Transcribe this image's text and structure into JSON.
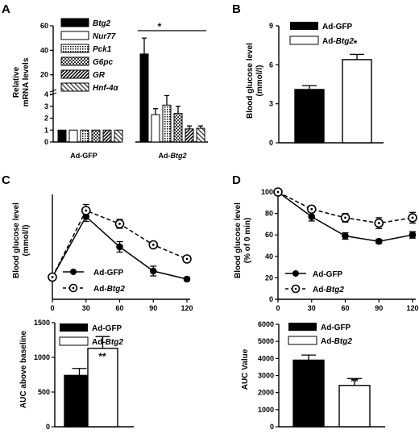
{
  "panels": {
    "A": "A",
    "B": "B",
    "C": "C",
    "D": "D"
  },
  "colors": {
    "black": "#000000",
    "white": "#ffffff"
  },
  "chart_data": [
    {
      "id": "A",
      "type": "bar",
      "ylabel_line1": "Relative",
      "ylabel_line2": "mRNA levels",
      "y_ticks": [
        "0",
        "1",
        "2",
        "3",
        "4",
        "20",
        "40",
        "60"
      ],
      "y_axis": "broken: 0–4 linear, 4–60 compressed",
      "groups": [
        "Ad-GFP",
        "Ad-Btg2"
      ],
      "group_label_gfp": "Ad-GFP",
      "group_label_btg2_prefix": "Ad-",
      "group_label_btg2_italic": "Btg2",
      "series": [
        {
          "name": "Btg2",
          "pattern": "solid-black",
          "values": [
            1,
            37
          ],
          "errors": [
            0,
            13
          ]
        },
        {
          "name": "Nur77",
          "pattern": "white",
          "values": [
            1,
            2.3
          ],
          "errors": [
            0,
            0.5
          ]
        },
        {
          "name": "Pck1",
          "pattern": "dots",
          "values": [
            1,
            3.1
          ],
          "errors": [
            0,
            0.8
          ]
        },
        {
          "name": "G6pc",
          "pattern": "checker",
          "values": [
            1,
            2.4
          ],
          "errors": [
            0,
            0.6
          ]
        },
        {
          "name": "GR",
          "pattern": "diag-dark",
          "values": [
            1,
            1.1
          ],
          "errors": [
            0,
            0.25
          ]
        },
        {
          "name": "Hnf-4α",
          "pattern": "diag-light",
          "values": [
            1,
            1.15
          ],
          "errors": [
            0,
            0.2
          ]
        }
      ],
      "significance": "*"
    },
    {
      "id": "B",
      "type": "bar",
      "ylabel_line1": "Blood glucose level",
      "ylabel_line2": "(mmol/l)",
      "ylim": [
        0,
        9
      ],
      "y_ticks": [
        "0",
        "3",
        "6",
        "9"
      ],
      "legend_gfp": "Ad-GFP",
      "legend_btg2_prefix": "Ad-",
      "legend_btg2_italic": "Btg2",
      "values": [
        4.1,
        6.4
      ],
      "errors": [
        0.3,
        0.4
      ],
      "significance": "*"
    },
    {
      "id": "C-top",
      "type": "line",
      "ylabel_line1": "Blood glucose level",
      "ylabel_line2": "(mmol/l)",
      "x": [
        0,
        30,
        60,
        90,
        120
      ],
      "x_ticks": [
        "0",
        "30",
        "60",
        "90",
        "120"
      ],
      "ylim": [
        0,
        26
      ],
      "legend_gfp": "Ad-GFP",
      "legend_btg2_prefix": "Ad-",
      "legend_btg2_italic": "Btg2",
      "series": [
        {
          "name": "Ad-GFP",
          "values": [
            5.5,
            20.5,
            13,
            7,
            5
          ],
          "errors": [
            0,
            1.2,
            1.3,
            1.2,
            0.4
          ]
        },
        {
          "name": "Ad-Btg2",
          "values": [
            5.5,
            22,
            18.7,
            13.5,
            10
          ],
          "errors": [
            0,
            1.5,
            1.1,
            0.7,
            0.6
          ]
        }
      ]
    },
    {
      "id": "C-bottom",
      "type": "bar",
      "ylabel": "AUC above baseline",
      "ylim": [
        0,
        1500
      ],
      "y_ticks": [
        "0",
        "500",
        "1000",
        "1500"
      ],
      "legend_gfp": "Ad-GFP",
      "legend_btg2_prefix": "Ad-",
      "legend_btg2_italic": "Btg2",
      "values": [
        740,
        1130
      ],
      "errors": [
        100,
        170
      ],
      "significance": "**"
    },
    {
      "id": "D-top",
      "type": "line",
      "ylabel_line1": "Blood glucose level",
      "ylabel_line2": "(% of 0 min)",
      "x": [
        0,
        30,
        60,
        90,
        120
      ],
      "x_ticks": [
        "0",
        "30",
        "60",
        "90",
        "120"
      ],
      "ylim": [
        0,
        100
      ],
      "y_ticks": [
        "0",
        "20",
        "40",
        "60",
        "80",
        "100"
      ],
      "legend_gfp": "Ad-GFP",
      "legend_btg2_prefix": "Ad-",
      "legend_btg2_italic": "Btg2",
      "series": [
        {
          "name": "Ad-GFP",
          "values": [
            100,
            77,
            59,
            54,
            60
          ],
          "errors": [
            0,
            4,
            3,
            2,
            3
          ]
        },
        {
          "name": "Ad-Btg2",
          "values": [
            100,
            84,
            76,
            71,
            76
          ],
          "errors": [
            0,
            3,
            4,
            5,
            5
          ]
        }
      ]
    },
    {
      "id": "D-bottom",
      "type": "bar",
      "ylabel": "AUC Value",
      "ylim": [
        0,
        6000
      ],
      "y_ticks": [
        "0",
        "1000",
        "2000",
        "3000",
        "4000",
        "5000",
        "6000"
      ],
      "legend_gfp": "Ad-GFP",
      "legend_btg2_prefix": "Ad-",
      "legend_btg2_italic": "Btg2",
      "values": [
        3900,
        2420
      ],
      "errors": [
        300,
        400
      ],
      "significance": "**"
    }
  ]
}
